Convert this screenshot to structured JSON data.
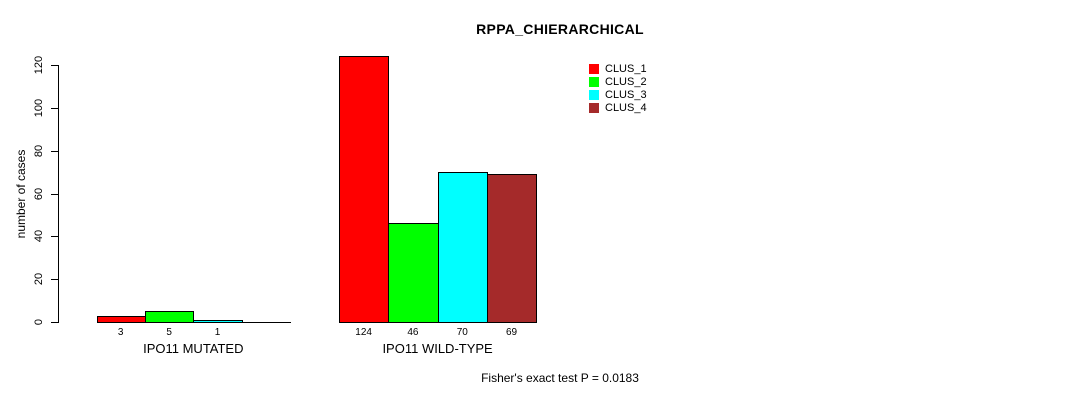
{
  "chart_data": {
    "type": "bar",
    "title": "RPPA_CHIERARCHICAL",
    "ylabel": "number of cases",
    "xlabel": "",
    "ylim": [
      0,
      120
    ],
    "yticks": [
      "0",
      "20",
      "40",
      "60",
      "80",
      "100",
      "120"
    ],
    "grid": false,
    "legend_position": "top-right",
    "categories": [
      "IPO11 MUTATED",
      "IPO11 WILD-TYPE"
    ],
    "series": [
      {
        "name": "CLUS_1",
        "color": "#FF0000",
        "values": [
          3,
          124
        ]
      },
      {
        "name": "CLUS_2",
        "color": "#00FF00",
        "values": [
          5,
          46
        ]
      },
      {
        "name": "CLUS_3",
        "color": "#00FFFF",
        "values": [
          1,
          70
        ]
      },
      {
        "name": "CLUS_4",
        "color": "#A52A2A",
        "values": [
          0,
          69
        ]
      }
    ],
    "bar_value_labels": [
      [
        "3",
        "5",
        "1",
        ""
      ],
      [
        "124",
        "46",
        "70",
        "69"
      ]
    ],
    "annotation": "Fisher's exact test P = 0.0183"
  }
}
